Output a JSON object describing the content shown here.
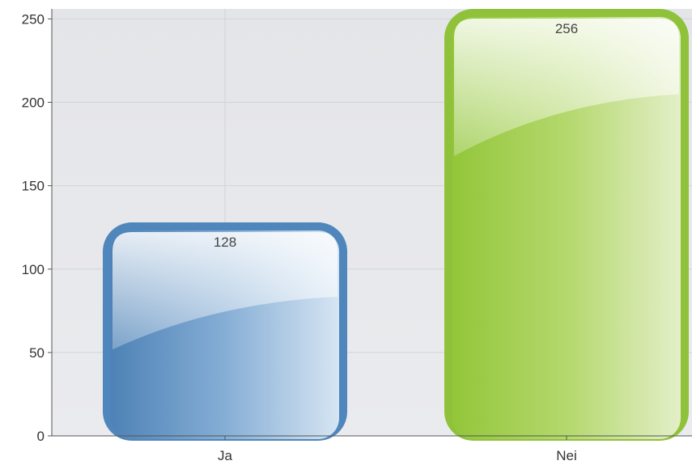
{
  "chart_data": {
    "type": "bar",
    "categories": [
      "Ja",
      "Nei"
    ],
    "values": [
      128,
      256
    ],
    "data_labels": [
      "128",
      "256"
    ],
    "y_ticks": [
      0,
      50,
      100,
      150,
      200,
      250
    ],
    "ylim": [
      0,
      256
    ],
    "grid": true,
    "colors": {
      "Ja": "#4f86bc",
      "Nei": "#8fc23a",
      "plot_background": "#e6e7ea",
      "grid": "#d2d3d7"
    }
  }
}
